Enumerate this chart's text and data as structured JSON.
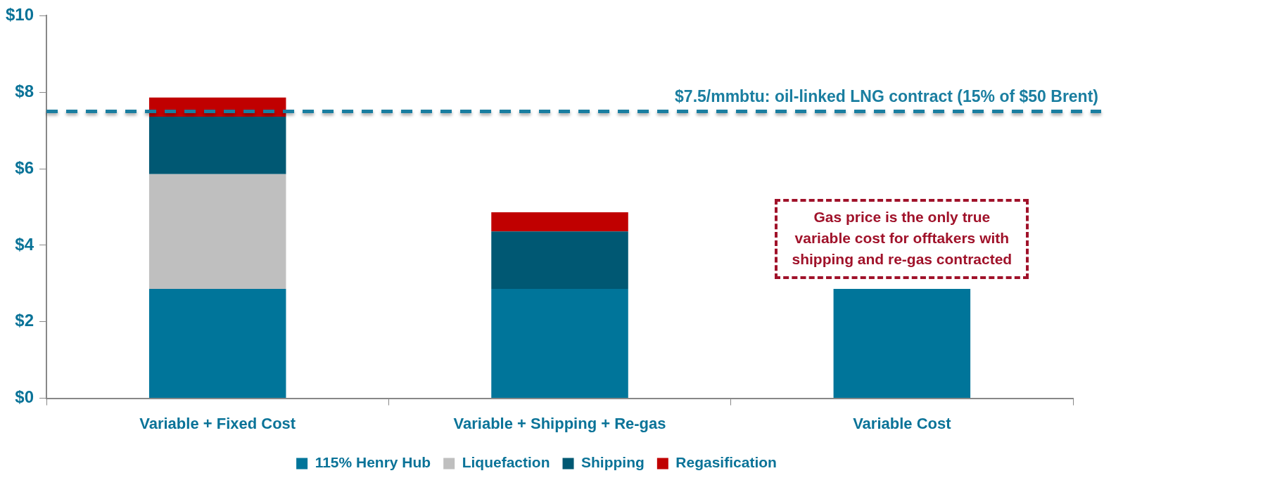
{
  "chart_data": {
    "type": "bar",
    "stacked": true,
    "categories": [
      "Variable + Fixed Cost",
      "Variable + Shipping + Re-gas",
      "Variable Cost"
    ],
    "series": [
      {
        "name": "115% Henry Hub",
        "color": "#00759a",
        "values": [
          2.86,
          2.86,
          2.86
        ]
      },
      {
        "name": "Liquefaction",
        "color": "#bfbfbf",
        "values": [
          3.0,
          null,
          null
        ]
      },
      {
        "name": "Shipping",
        "color": "#005873",
        "values": [
          1.5,
          1.5,
          null
        ]
      },
      {
        "name": "Regasification",
        "color": "#c00000",
        "values": [
          0.5,
          0.5,
          null
        ]
      }
    ],
    "ylim": [
      0,
      10
    ],
    "yticks": [
      {
        "value": 0,
        "label": "$0"
      },
      {
        "value": 2,
        "label": "$2"
      },
      {
        "value": 4,
        "label": "$4"
      },
      {
        "value": 6,
        "label": "$6"
      },
      {
        "value": 8,
        "label": "$8"
      },
      {
        "value": 10,
        "label": "$10"
      }
    ],
    "grid": false,
    "legend": "bottom",
    "ref_lines": [
      {
        "axis": "y",
        "value": 7.5,
        "label": "$7.5/mmbtu: oil-linked LNG contract (15% of $50 Brent)",
        "color": "#1a7ea0",
        "line_style": "dashed"
      }
    ],
    "annotations": [
      "Gas price is the only true\nvariable cost for offtakers with\nshipping and re-gas contracted"
    ]
  }
}
